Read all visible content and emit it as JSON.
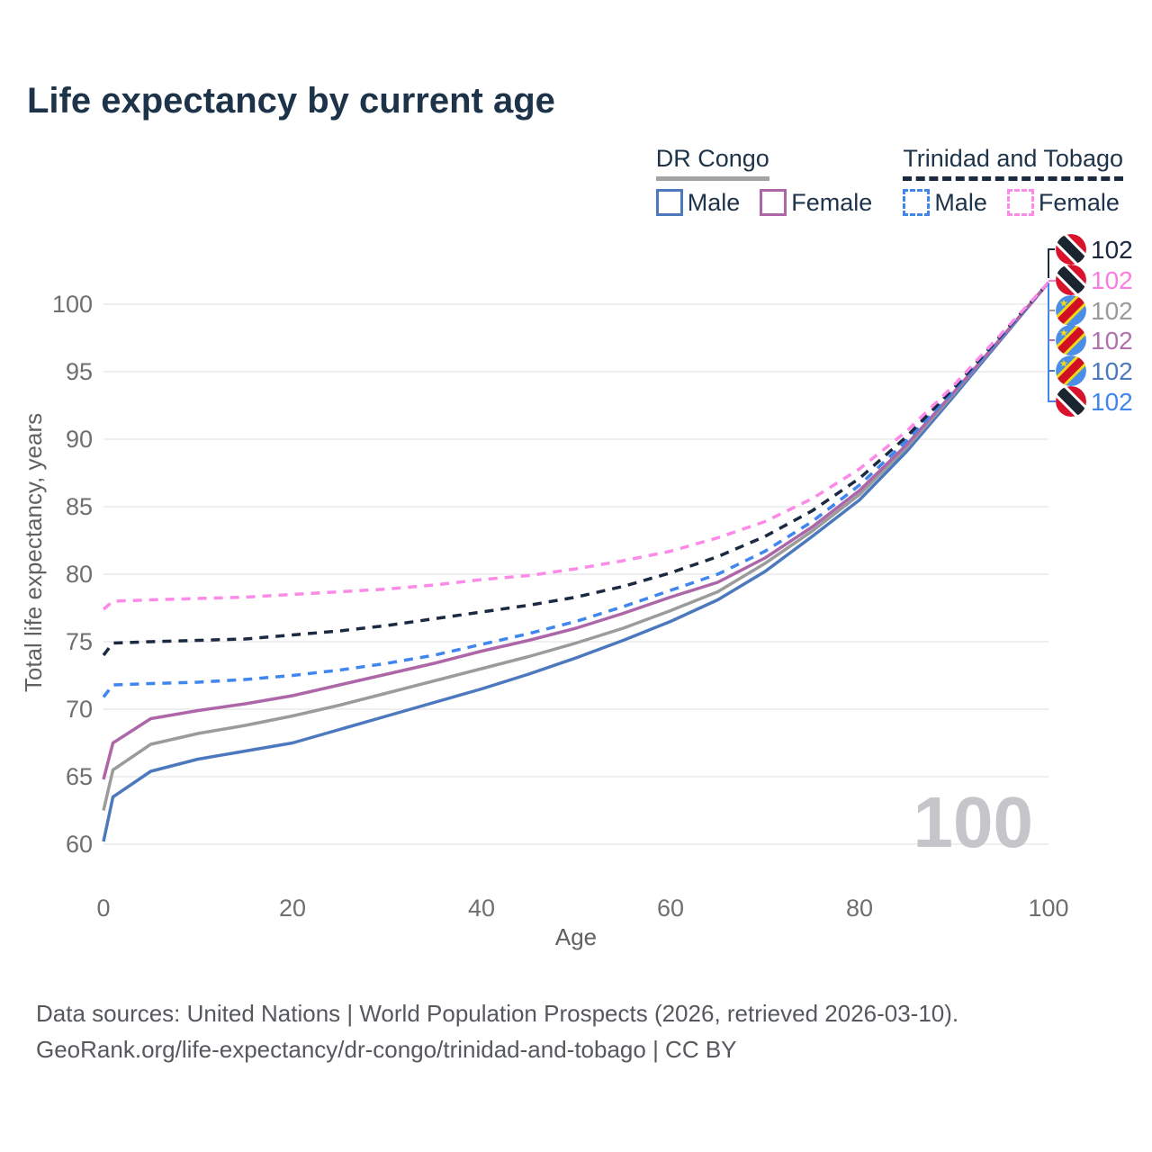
{
  "title": "Life expectancy by current age",
  "legend": {
    "groups": [
      {
        "label": "DR Congo",
        "line_style": "solid",
        "underline_color": "#a3a3a3",
        "items": [
          {
            "label": "Male",
            "color": "#4c79bd"
          },
          {
            "label": "Female",
            "color": "#ad66a8"
          }
        ]
      },
      {
        "label": "Trinidad and Tobago",
        "line_style": "dashed",
        "underline_color": "#1b2a41",
        "items": [
          {
            "label": "Male",
            "color": "#3f86ee"
          },
          {
            "label": "Female",
            "color": "#fb8ae8"
          }
        ]
      }
    ]
  },
  "chart_data": {
    "type": "line",
    "title": "Life expectancy by current age",
    "xlabel": "Age",
    "ylabel": "Total life expectancy, years",
    "xlim": [
      0,
      100
    ],
    "ylim": [
      60,
      102.5
    ],
    "xticks": [
      0,
      20,
      40,
      60,
      80,
      100
    ],
    "yticks": [
      60,
      65,
      70,
      75,
      80,
      85,
      90,
      95,
      100
    ],
    "grid": "horizontal",
    "grid_color": "#eaeaea",
    "x": [
      0,
      1,
      5,
      10,
      15,
      20,
      25,
      30,
      35,
      40,
      45,
      50,
      55,
      60,
      65,
      70,
      75,
      80,
      85,
      90,
      95,
      100
    ],
    "series": [
      {
        "name": "DR Congo Male",
        "country": "DR Congo",
        "sex": "Male",
        "color": "#4c79bd",
        "dash": false,
        "values": [
          60.2,
          63.5,
          65.4,
          66.3,
          66.9,
          67.5,
          68.5,
          69.5,
          70.5,
          71.5,
          72.6,
          73.8,
          75.1,
          76.5,
          78.1,
          80.2,
          82.8,
          85.5,
          89.1,
          93.2,
          97.4,
          101.6
        ]
      },
      {
        "name": "DR Congo Both sexes",
        "country": "DR Congo",
        "sex": "Both",
        "color": "#9b9b9b",
        "dash": false,
        "values": [
          62.5,
          65.5,
          67.4,
          68.2,
          68.8,
          69.5,
          70.3,
          71.2,
          72.1,
          73.0,
          73.9,
          74.9,
          76.0,
          77.3,
          78.7,
          80.8,
          83.2,
          85.9,
          89.4,
          93.4,
          97.5,
          101.6
        ]
      },
      {
        "name": "DR Congo Female",
        "country": "DR Congo",
        "sex": "Female",
        "color": "#ad66a8",
        "dash": false,
        "values": [
          64.8,
          67.5,
          69.3,
          69.9,
          70.4,
          71.0,
          71.8,
          72.6,
          73.4,
          74.3,
          75.1,
          76.0,
          77.1,
          78.3,
          79.4,
          81.2,
          83.5,
          86.2,
          89.6,
          93.5,
          97.5,
          101.6
        ]
      },
      {
        "name": "Trinidad and Tobago Male",
        "country": "Trinidad and Tobago",
        "sex": "Male",
        "color": "#3f86ee",
        "dash": true,
        "values": [
          70.9,
          71.8,
          71.9,
          72.0,
          72.2,
          72.5,
          72.9,
          73.4,
          74.0,
          74.8,
          75.6,
          76.5,
          77.6,
          78.8,
          80.0,
          81.7,
          83.9,
          86.6,
          89.9,
          93.6,
          97.6,
          101.6
        ]
      },
      {
        "name": "Trinidad and Tobago Both sexes",
        "country": "Trinidad and Tobago",
        "sex": "Both",
        "color": "#1b2a41",
        "dash": true,
        "values": [
          74.0,
          74.9,
          75.0,
          75.1,
          75.2,
          75.5,
          75.8,
          76.2,
          76.7,
          77.2,
          77.7,
          78.3,
          79.1,
          80.1,
          81.3,
          82.8,
          84.7,
          87.1,
          90.2,
          93.8,
          97.7,
          101.6
        ]
      },
      {
        "name": "Trinidad and Tobago Female",
        "country": "Trinidad and Tobago",
        "sex": "Female",
        "color": "#fb8ae8",
        "dash": true,
        "values": [
          77.4,
          78.0,
          78.1,
          78.2,
          78.3,
          78.5,
          78.7,
          78.9,
          79.2,
          79.6,
          79.9,
          80.4,
          81.0,
          81.7,
          82.7,
          83.9,
          85.6,
          87.8,
          90.6,
          94.0,
          97.8,
          101.6
        ]
      }
    ],
    "end_labels": [
      {
        "flag": "trinidad-and-tobago",
        "label": "102",
        "color": "#1b2a41"
      },
      {
        "flag": "trinidad-and-tobago",
        "label": "102",
        "color": "#fb7ce0"
      },
      {
        "flag": "dr-congo",
        "label": "102",
        "color": "#9b9b9b"
      },
      {
        "flag": "dr-congo",
        "label": "102",
        "color": "#b071ae"
      },
      {
        "flag": "dr-congo",
        "label": "102",
        "color": "#4c79bd"
      },
      {
        "flag": "trinidad-and-tobago",
        "label": "102",
        "color": "#3f86ee"
      }
    ],
    "watermark": "100",
    "legend_position": "top-right"
  },
  "footer": {
    "line1": "Data sources: United Nations | World Population Prospects (2026, retrieved 2026-03-10).",
    "line2": "GeoRank.org/life-expectancy/dr-congo/trinidad-and-tobago | CC BY"
  }
}
